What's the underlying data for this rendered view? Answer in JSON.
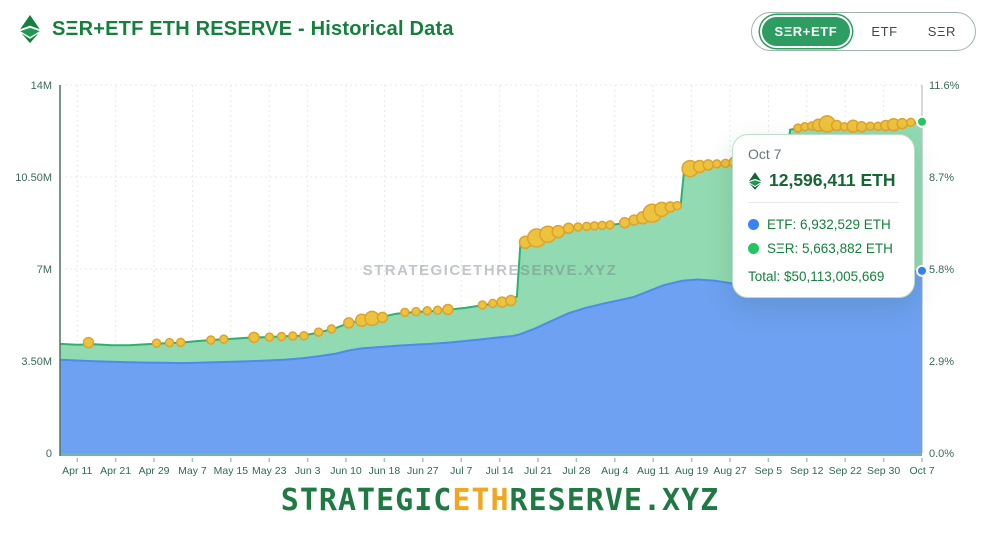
{
  "header": {
    "title": "SΞR+ETF ETH RESERVE - Historical Data",
    "toggle": {
      "options": [
        {
          "label": "SΞR+ETF",
          "active": true
        },
        {
          "label": "ETF",
          "active": false
        },
        {
          "label": "SΞR",
          "active": false
        }
      ]
    }
  },
  "watermark": "STRATEGICETHRESERVE.XYZ",
  "tooltip": {
    "date": "Oct 7",
    "total_eth": "12,596,411 ETH",
    "etf_row": "ETF: 6,932,529 ETH",
    "ser_row": "SΞR: 5,663,882 ETH",
    "total_usd": "Total: $50,113,005,669"
  },
  "footer": {
    "part1": "STRATEGIC",
    "part2": "ETH",
    "part3": "RESERVE.XYZ"
  },
  "chart_data": {
    "type": "area",
    "stacked": true,
    "title": "SΞR+ETF ETH RESERVE - Historical Data",
    "grid": true,
    "units": "values in millions of ETH; x = fraction of time axis Apr 11 → Oct 7",
    "x_tick_labels": [
      "Apr 11",
      "Apr 21",
      "Apr 29",
      "May 7",
      "May 15",
      "May 23",
      "Jun 3",
      "Jun 10",
      "Jun 18",
      "Jun 27",
      "Jul 7",
      "Jul 14",
      "Jul 21",
      "Jul 28",
      "Aug 4",
      "Aug 11",
      "Aug 19",
      "Aug 27",
      "Sep 5",
      "Sep 12",
      "Sep 22",
      "Sep 30",
      "Oct 7"
    ],
    "y_left": {
      "labels": [
        "0",
        "3.50M",
        "7M",
        "10.50M",
        "14M"
      ],
      "values": [
        0,
        3.5,
        7,
        10.5,
        14
      ],
      "max": 14
    },
    "y_right": {
      "labels": [
        "0.0%",
        "2.9%",
        "5.8%",
        "8.7%",
        "11.6%"
      ]
    },
    "series": [
      {
        "name": "SΞR+ETF total",
        "fill": "#92dab2",
        "line": "#2fb070",
        "points": [
          [
            0,
            4.15
          ],
          [
            0.02,
            4.12
          ],
          [
            0.04,
            4.14
          ],
          [
            0.06,
            4.1
          ],
          [
            0.08,
            4.1
          ],
          [
            0.1,
            4.14
          ],
          [
            0.12,
            4.17
          ],
          [
            0.14,
            4.2
          ],
          [
            0.16,
            4.26
          ],
          [
            0.18,
            4.31
          ],
          [
            0.2,
            4.35
          ],
          [
            0.22,
            4.39
          ],
          [
            0.24,
            4.41
          ],
          [
            0.26,
            4.44
          ],
          [
            0.28,
            4.46
          ],
          [
            0.3,
            4.58
          ],
          [
            0.32,
            4.75
          ],
          [
            0.335,
            4.95
          ],
          [
            0.35,
            5.05
          ],
          [
            0.37,
            5.15
          ],
          [
            0.39,
            5.3
          ],
          [
            0.41,
            5.36
          ],
          [
            0.43,
            5.4
          ],
          [
            0.45,
            5.45
          ],
          [
            0.47,
            5.52
          ],
          [
            0.49,
            5.62
          ],
          [
            0.51,
            5.72
          ],
          [
            0.525,
            5.88
          ],
          [
            0.53,
            5.95
          ],
          [
            0.534,
            7.9
          ],
          [
            0.55,
            8.1
          ],
          [
            0.57,
            8.35
          ],
          [
            0.59,
            8.53
          ],
          [
            0.61,
            8.6
          ],
          [
            0.63,
            8.65
          ],
          [
            0.65,
            8.72
          ],
          [
            0.665,
            8.84
          ],
          [
            0.68,
            9.02
          ],
          [
            0.7,
            9.28
          ],
          [
            0.715,
            9.38
          ],
          [
            0.72,
            9.4
          ],
          [
            0.724,
            10.75
          ],
          [
            0.74,
            10.87
          ],
          [
            0.76,
            10.97
          ],
          [
            0.78,
            11.03
          ],
          [
            0.8,
            11.0
          ],
          [
            0.815,
            10.95
          ],
          [
            0.83,
            11.08
          ],
          [
            0.84,
            11.2
          ],
          [
            0.843,
            11.22
          ],
          [
            0.847,
            12.3
          ],
          [
            0.86,
            12.38
          ],
          [
            0.88,
            12.43
          ],
          [
            0.9,
            12.42
          ],
          [
            0.92,
            12.4
          ],
          [
            0.94,
            12.41
          ],
          [
            0.96,
            12.44
          ],
          [
            0.98,
            12.5
          ],
          [
            1,
            12.6
          ]
        ]
      },
      {
        "name": "ETF",
        "fill": "#6ea1f1",
        "line": "#4d8cec",
        "points": [
          [
            0,
            3.55
          ],
          [
            0.02,
            3.52
          ],
          [
            0.04,
            3.49
          ],
          [
            0.06,
            3.47
          ],
          [
            0.08,
            3.45
          ],
          [
            0.1,
            3.44
          ],
          [
            0.12,
            3.43
          ],
          [
            0.14,
            3.42
          ],
          [
            0.16,
            3.43
          ],
          [
            0.18,
            3.45
          ],
          [
            0.2,
            3.47
          ],
          [
            0.22,
            3.49
          ],
          [
            0.24,
            3.52
          ],
          [
            0.26,
            3.55
          ],
          [
            0.28,
            3.6
          ],
          [
            0.3,
            3.68
          ],
          [
            0.32,
            3.78
          ],
          [
            0.335,
            3.9
          ],
          [
            0.35,
            3.98
          ],
          [
            0.37,
            4.03
          ],
          [
            0.39,
            4.08
          ],
          [
            0.41,
            4.12
          ],
          [
            0.43,
            4.15
          ],
          [
            0.45,
            4.2
          ],
          [
            0.47,
            4.26
          ],
          [
            0.49,
            4.33
          ],
          [
            0.51,
            4.4
          ],
          [
            0.525,
            4.45
          ],
          [
            0.532,
            4.5
          ],
          [
            0.55,
            4.72
          ],
          [
            0.57,
            5.02
          ],
          [
            0.59,
            5.32
          ],
          [
            0.61,
            5.52
          ],
          [
            0.63,
            5.68
          ],
          [
            0.65,
            5.82
          ],
          [
            0.665,
            5.93
          ],
          [
            0.68,
            6.12
          ],
          [
            0.7,
            6.38
          ],
          [
            0.715,
            6.5
          ],
          [
            0.722,
            6.55
          ],
          [
            0.74,
            6.6
          ],
          [
            0.76,
            6.55
          ],
          [
            0.78,
            6.45
          ],
          [
            0.8,
            6.3
          ],
          [
            0.815,
            6.2
          ],
          [
            0.83,
            6.3
          ],
          [
            0.845,
            6.4
          ],
          [
            0.86,
            6.5
          ],
          [
            0.88,
            6.56
          ],
          [
            0.9,
            6.6
          ],
          [
            0.92,
            6.65
          ],
          [
            0.94,
            6.72
          ],
          [
            0.96,
            6.8
          ],
          [
            0.98,
            6.87
          ],
          [
            1,
            6.93
          ]
        ]
      }
    ],
    "purchase_markers": {
      "color": "#ecc33e",
      "stroke": "#dfa22c",
      "points": [
        [
          0.033,
          4.2,
          5
        ],
        [
          0.112,
          4.18,
          4
        ],
        [
          0.127,
          4.2,
          4
        ],
        [
          0.14,
          4.21,
          4
        ],
        [
          0.175,
          4.3,
          4
        ],
        [
          0.19,
          4.33,
          4
        ],
        [
          0.225,
          4.4,
          5
        ],
        [
          0.243,
          4.41,
          4
        ],
        [
          0.257,
          4.43,
          4
        ],
        [
          0.27,
          4.45,
          4
        ],
        [
          0.283,
          4.46,
          4
        ],
        [
          0.3,
          4.6,
          4
        ],
        [
          0.315,
          4.72,
          4
        ],
        [
          0.335,
          4.95,
          5
        ],
        [
          0.35,
          5.05,
          6
        ],
        [
          0.362,
          5.12,
          7
        ],
        [
          0.374,
          5.16,
          5
        ],
        [
          0.4,
          5.35,
          4
        ],
        [
          0.413,
          5.38,
          4
        ],
        [
          0.426,
          5.41,
          4
        ],
        [
          0.438,
          5.43,
          4
        ],
        [
          0.45,
          5.46,
          5
        ],
        [
          0.49,
          5.63,
          4
        ],
        [
          0.502,
          5.69,
          4
        ],
        [
          0.513,
          5.74,
          5
        ],
        [
          0.523,
          5.8,
          5
        ],
        [
          0.54,
          8.02,
          6
        ],
        [
          0.553,
          8.18,
          9
        ],
        [
          0.566,
          8.32,
          8
        ],
        [
          0.578,
          8.42,
          6
        ],
        [
          0.59,
          8.55,
          5
        ],
        [
          0.601,
          8.6,
          4
        ],
        [
          0.611,
          8.62,
          4
        ],
        [
          0.62,
          8.64,
          4
        ],
        [
          0.629,
          8.66,
          4
        ],
        [
          0.638,
          8.68,
          4
        ],
        [
          0.655,
          8.76,
          5
        ],
        [
          0.666,
          8.86,
          5
        ],
        [
          0.676,
          8.95,
          6
        ],
        [
          0.687,
          9.12,
          9
        ],
        [
          0.698,
          9.27,
          7
        ],
        [
          0.708,
          9.36,
          5
        ],
        [
          0.716,
          9.41,
          4
        ],
        [
          0.731,
          10.82,
          8
        ],
        [
          0.742,
          10.9,
          6
        ],
        [
          0.752,
          10.96,
          5
        ],
        [
          0.762,
          11.0,
          4
        ],
        [
          0.772,
          11.02,
          4
        ],
        [
          0.782,
          11.06,
          5
        ],
        [
          0.792,
          11.07,
          4
        ],
        [
          0.83,
          11.12,
          5
        ],
        [
          0.84,
          11.22,
          4
        ],
        [
          0.856,
          12.36,
          4
        ],
        [
          0.864,
          12.41,
          4
        ],
        [
          0.872,
          12.44,
          4
        ],
        [
          0.88,
          12.47,
          6
        ],
        [
          0.89,
          12.52,
          8
        ],
        [
          0.901,
          12.46,
          5
        ],
        [
          0.91,
          12.41,
          4
        ],
        [
          0.92,
          12.43,
          6
        ],
        [
          0.93,
          12.41,
          5
        ],
        [
          0.94,
          12.43,
          4
        ],
        [
          0.949,
          12.43,
          4
        ],
        [
          0.958,
          12.46,
          5
        ],
        [
          0.967,
          12.49,
          6
        ],
        [
          0.977,
          12.53,
          5
        ],
        [
          0.987,
          12.58,
          4
        ]
      ]
    },
    "end_markers": [
      {
        "x": 1,
        "value": 12.6,
        "color": "#22c55e",
        "name": "last-total-point"
      },
      {
        "x": 1,
        "value": 6.93,
        "color": "#3b82f6",
        "name": "last-etf-point"
      }
    ],
    "colors": {
      "axis_left": "#4e7467",
      "axis_right": "#c5cbcf",
      "axis_bottom": "#5da993",
      "tick_text": "#3a6a5a",
      "x_text": "#2f6b52",
      "grid": "#e4e9ec"
    }
  }
}
